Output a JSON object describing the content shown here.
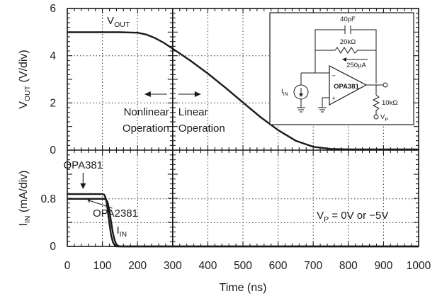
{
  "chart_data": [
    {
      "type": "line",
      "title": "",
      "xlabel": "",
      "ylabel": "V_OUT (V/div)",
      "ylabel_parts": [
        "V",
        "OUT",
        " (V/div)"
      ],
      "xlim": [
        0,
        1000
      ],
      "ylim": [
        0,
        6
      ],
      "yticks": [
        "0",
        "2",
        "4",
        "6"
      ],
      "grid": true,
      "series": [
        {
          "name": "VOUT",
          "label_parts": [
            "V",
            "OUT"
          ],
          "x": [
            0,
            50,
            100,
            150,
            200,
            225,
            250,
            275,
            300,
            325,
            350,
            400,
            450,
            500,
            550,
            600,
            650,
            700,
            750,
            800,
            900,
            1000
          ],
          "y": [
            5.0,
            5.0,
            5.0,
            5.0,
            4.98,
            4.9,
            4.75,
            4.55,
            4.3,
            4.05,
            3.8,
            3.25,
            2.65,
            2.02,
            1.4,
            0.85,
            0.4,
            0.14,
            0.05,
            0.03,
            0.03,
            0.03
          ]
        }
      ],
      "annotations": {
        "divider_x": 300,
        "nonlinear": [
          "Nonlinear",
          "Operation"
        ],
        "linear": [
          "Linear",
          "Operation"
        ]
      }
    },
    {
      "type": "line",
      "xlabel": "Time (ns)",
      "ylabel": "I_IN (mA/div)",
      "ylabel_parts": [
        "I",
        "IN",
        " (mA/div)"
      ],
      "xlim": [
        0,
        1000
      ],
      "ylim": [
        0,
        1.0
      ],
      "yticks": [
        "0",
        "0.8"
      ],
      "xticks": [
        "0",
        "100",
        "200",
        "300",
        "400",
        "500",
        "600",
        "700",
        "800",
        "900",
        "1000"
      ],
      "grid": true,
      "series": [
        {
          "name": "OPA381",
          "x": [
            0,
            100,
            105,
            110,
            115,
            120,
            125,
            130,
            135,
            140,
            150,
            1000
          ],
          "y": [
            0.88,
            0.88,
            0.87,
            0.8,
            0.62,
            0.38,
            0.18,
            0.07,
            0.02,
            0.0,
            0.0,
            0.0
          ]
        },
        {
          "name": "OPA2381",
          "x": [
            0,
            105,
            110,
            115,
            120,
            125,
            130,
            135,
            140,
            145,
            150,
            160,
            1000
          ],
          "y": [
            0.8,
            0.8,
            0.79,
            0.74,
            0.6,
            0.4,
            0.22,
            0.1,
            0.03,
            0.01,
            0.0,
            0.0,
            0.0
          ]
        }
      ],
      "annotations": {
        "iin_parts": [
          "I",
          "IN"
        ],
        "vp_parts": [
          "V",
          "P",
          " = 0V or −5V"
        ]
      }
    }
  ],
  "circuit": {
    "cap": "40pF",
    "res_fb": "20kΩ",
    "current": "250μA",
    "source_parts": [
      "I",
      "IN"
    ],
    "opamp": "OPA381",
    "minus": "−",
    "plus": "+",
    "res_load": "10kΩ",
    "supply_parts": [
      "V",
      "P"
    ]
  }
}
